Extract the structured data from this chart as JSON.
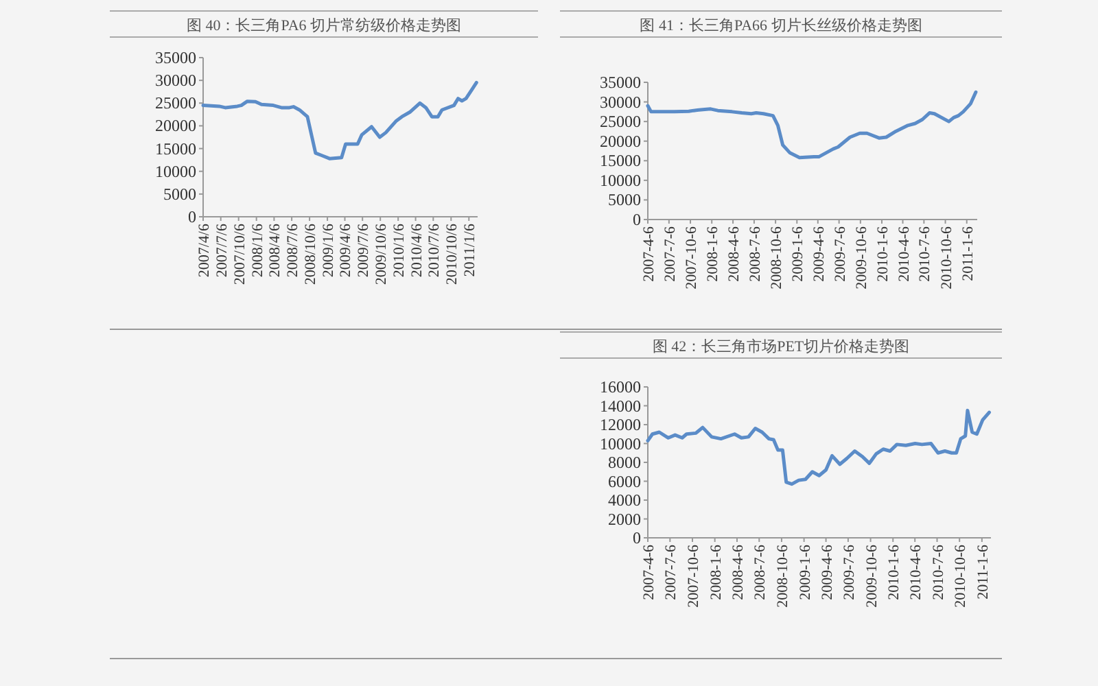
{
  "chart_data": [
    {
      "type": "line",
      "title": "图 40：长三角PA6 切片常纺级价格走势图",
      "x": [
        "2007-04-06",
        "2007-06-28",
        "2007-07-29",
        "2007-09-29",
        "2007-10-20",
        "2007-11-20",
        "2008-01-01",
        "2008-02-01",
        "2008-04-02",
        "2008-05-14",
        "2008-06-24",
        "2008-07-15",
        "2008-08-15",
        "2008-09-25",
        "2008-10-16",
        "2008-11-06",
        "2008-12-07",
        "2009-01-17",
        "2009-03-20",
        "2009-04-10",
        "2009-06-11",
        "2009-07-02",
        "2009-08-22",
        "2009-10-03",
        "2009-11-03",
        "2009-12-25",
        "2010-01-25",
        "2010-03-07",
        "2010-04-28",
        "2010-05-29",
        "2010-06-29",
        "2010-07-30",
        "2010-08-20",
        "2010-10-21",
        "2010-11-11",
        "2010-12-01",
        "2010-12-22",
        "2011-01-22",
        "2011-02-14"
      ],
      "series": [
        {
          "color": "#5b8cc8",
          "values": [
            24500,
            24300,
            24000,
            24300,
            24500,
            25400,
            25300,
            24700,
            24500,
            24000,
            24000,
            24200,
            23500,
            22000,
            18000,
            14000,
            13500,
            12800,
            13000,
            16000,
            16000,
            18000,
            19800,
            17500,
            18500,
            21000,
            22000,
            23000,
            25000,
            24000,
            22000,
            22000,
            23500,
            24500,
            26000,
            25500,
            26000,
            28000,
            29500
          ]
        }
      ],
      "ylim": [
        0,
        35000
      ],
      "yticks": [
        0,
        5000,
        10000,
        15000,
        20000,
        25000,
        30000,
        35000
      ],
      "xlim": [
        "2007-04-06",
        "2011-02-20"
      ],
      "xticks": [
        {
          "value": "2007-04-06",
          "label": "2007/4/6"
        },
        {
          "value": "2007-07-06",
          "label": "2007/7/6"
        },
        {
          "value": "2007-10-06",
          "label": "2007/10/6"
        },
        {
          "value": "2008-01-06",
          "label": "2008/1/6"
        },
        {
          "value": "2008-04-06",
          "label": "2008/4/6"
        },
        {
          "value": "2008-07-06",
          "label": "2008/7/6"
        },
        {
          "value": "2008-10-06",
          "label": "2008/10/6"
        },
        {
          "value": "2009-01-06",
          "label": "2009/1/6"
        },
        {
          "value": "2009-04-06",
          "label": "2009/4/6"
        },
        {
          "value": "2009-07-06",
          "label": "2009/7/6"
        },
        {
          "value": "2009-10-06",
          "label": "2009/10/6"
        },
        {
          "value": "2010-01-06",
          "label": "2010/1/6"
        },
        {
          "value": "2010-04-06",
          "label": "2010/4/6"
        },
        {
          "value": "2010-07-06",
          "label": "2010/7/6"
        },
        {
          "value": "2010-10-06",
          "label": "2010/10/6"
        },
        {
          "value": "2011-01-06",
          "label": "2011/1/6"
        }
      ]
    },
    {
      "type": "line",
      "title": "图 41：长三角PA66 切片长丝级价格走势图",
      "x": [
        "2007-04-06",
        "2007-04-20",
        "2007-06-28",
        "2007-07-29",
        "2007-09-29",
        "2007-10-20",
        "2007-11-20",
        "2008-01-01",
        "2008-02-01",
        "2008-04-02",
        "2008-05-14",
        "2008-06-24",
        "2008-07-15",
        "2008-08-15",
        "2008-09-25",
        "2008-10-16",
        "2008-11-06",
        "2008-12-07",
        "2009-01-17",
        "2009-03-20",
        "2009-04-10",
        "2009-06-11",
        "2009-07-02",
        "2009-08-22",
        "2009-10-03",
        "2009-11-03",
        "2009-12-25",
        "2010-01-25",
        "2010-03-07",
        "2010-04-28",
        "2010-05-29",
        "2010-06-29",
        "2010-07-30",
        "2010-08-20",
        "2010-10-21",
        "2010-11-11",
        "2010-12-01",
        "2010-12-22",
        "2011-01-22",
        "2011-02-14"
      ],
      "series": [
        {
          "color": "#5b8cc8",
          "values": [
            29000,
            27500,
            27500,
            27500,
            27600,
            27800,
            28000,
            28200,
            27800,
            27500,
            27200,
            27000,
            27200,
            27000,
            26500,
            24000,
            19000,
            17000,
            15800,
            16000,
            16000,
            18000,
            18500,
            21000,
            22000,
            22000,
            20800,
            21000,
            22500,
            24000,
            24500,
            25500,
            27200,
            27000,
            25000,
            26000,
            26500,
            27500,
            29500,
            32500
          ]
        }
      ],
      "ylim": [
        0,
        35000
      ],
      "yticks": [
        0,
        5000,
        10000,
        15000,
        20000,
        25000,
        30000,
        35000
      ],
      "xlim": [
        "2007-04-06",
        "2011-02-20"
      ],
      "xticks": [
        {
          "value": "2007-04-06",
          "label": "2007-4-6"
        },
        {
          "value": "2007-07-06",
          "label": "2007-7-6"
        },
        {
          "value": "2007-10-06",
          "label": "2007-10-6"
        },
        {
          "value": "2008-01-06",
          "label": "2008-1-6"
        },
        {
          "value": "2008-04-06",
          "label": "2008-4-6"
        },
        {
          "value": "2008-07-06",
          "label": "2008-7-6"
        },
        {
          "value": "2008-10-06",
          "label": "2008-10-6"
        },
        {
          "value": "2009-01-06",
          "label": "2009-1-6"
        },
        {
          "value": "2009-04-06",
          "label": "2009-4-6"
        },
        {
          "value": "2009-07-06",
          "label": "2009-7-6"
        },
        {
          "value": "2009-10-06",
          "label": "2009-10-6"
        },
        {
          "value": "2010-01-06",
          "label": "2010-1-6"
        },
        {
          "value": "2010-04-06",
          "label": "2010-4-6"
        },
        {
          "value": "2010-07-06",
          "label": "2010-7-6"
        },
        {
          "value": "2010-10-06",
          "label": "2010-10-6"
        },
        {
          "value": "2011-01-06",
          "label": "2011-1-6"
        }
      ]
    },
    {
      "type": "line",
      "title": "图 42：长三角市场PET切片价格走势图",
      "x": [
        "2007-04-06",
        "2007-04-25",
        "2007-05-23",
        "2007-06-29",
        "2007-07-27",
        "2007-08-25",
        "2007-09-12",
        "2007-10-20",
        "2007-11-17",
        "2007-12-24",
        "2008-01-31",
        "2008-03-27",
        "2008-04-24",
        "2008-05-23",
        "2008-06-20",
        "2008-07-18",
        "2008-08-15",
        "2008-09-03",
        "2008-09-21",
        "2008-10-10",
        "2008-10-25",
        "2008-11-17",
        "2008-12-15",
        "2009-01-12",
        "2009-02-09",
        "2009-03-09",
        "2009-04-06",
        "2009-05-01",
        "2009-06-02",
        "2009-06-30",
        "2009-08-02",
        "2009-09-03",
        "2009-10-01",
        "2009-10-29",
        "2009-11-27",
        "2009-12-25",
        "2010-01-22",
        "2010-02-28",
        "2010-04-07",
        "2010-05-05",
        "2010-06-11",
        "2010-07-10",
        "2010-08-07",
        "2010-09-04",
        "2010-09-23",
        "2010-10-11",
        "2010-10-30",
        "2010-11-08",
        "2010-11-27",
        "2010-12-16",
        "2011-01-09",
        "2011-02-05"
      ],
      "series": [
        {
          "color": "#5b8cc8",
          "values": [
            10300,
            11000,
            11200,
            10600,
            10900,
            10600,
            11000,
            11100,
            11700,
            10700,
            10500,
            11000,
            10600,
            10700,
            11600,
            11200,
            10500,
            10400,
            9300,
            9300,
            5900,
            5700,
            6100,
            6200,
            7000,
            6600,
            7200,
            8700,
            7800,
            8400,
            9200,
            8600,
            7900,
            8900,
            9400,
            9200,
            9900,
            9800,
            10000,
            9900,
            10000,
            9000,
            9200,
            9000,
            9000,
            10500,
            10800,
            13500,
            11200,
            11000,
            12500,
            13300
          ]
        }
      ],
      "ylim": [
        0,
        16000
      ],
      "yticks": [
        0,
        2000,
        4000,
        6000,
        8000,
        10000,
        12000,
        14000,
        16000
      ],
      "xlim": [
        "2007-04-06",
        "2011-02-12"
      ],
      "xticks": [
        {
          "value": "2007-04-06",
          "label": "2007-4-6"
        },
        {
          "value": "2007-07-06",
          "label": "2007-7-6"
        },
        {
          "value": "2007-10-06",
          "label": "2007-10-6"
        },
        {
          "value": "2008-01-06",
          "label": "2008-1-6"
        },
        {
          "value": "2008-04-06",
          "label": "2008-4-6"
        },
        {
          "value": "2008-07-06",
          "label": "2008-7-6"
        },
        {
          "value": "2008-10-06",
          "label": "2008-10-6"
        },
        {
          "value": "2009-01-06",
          "label": "2009-1-6"
        },
        {
          "value": "2009-04-06",
          "label": "2009-4-6"
        },
        {
          "value": "2009-07-06",
          "label": "2009-7-6"
        },
        {
          "value": "2009-10-06",
          "label": "2009-10-6"
        },
        {
          "value": "2010-01-06",
          "label": "2010-1-6"
        },
        {
          "value": "2010-04-06",
          "label": "2010-4-6"
        },
        {
          "value": "2010-07-06",
          "label": "2010-7-6"
        },
        {
          "value": "2010-10-06",
          "label": "2010-10-6"
        },
        {
          "value": "2011-01-06",
          "label": "2011-1-6"
        }
      ]
    }
  ]
}
